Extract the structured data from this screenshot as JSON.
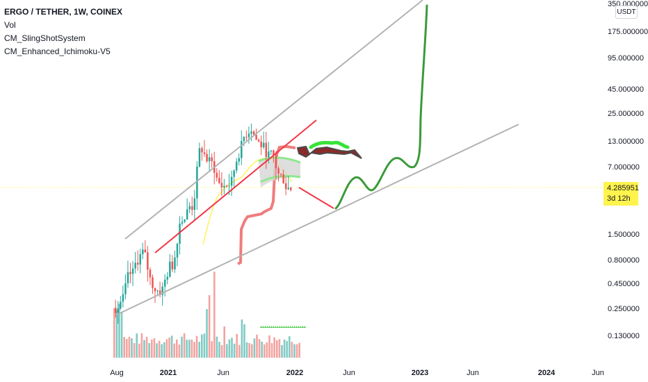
{
  "header": {
    "symbol_line": "ERGO / TETHER, 1W, COINEX",
    "indicators": [
      "Vol",
      "CM_SlingShotSystem",
      "CM_Enhanced_Ichimoku-V5"
    ]
  },
  "price_scale": {
    "currency_badge": "USDT",
    "ticks": [
      "350.000000",
      "175.000000",
      "95.000000",
      "45.000000",
      "25.000000",
      "13.000000",
      "7.000000",
      "1.500000",
      "0.800000",
      "0.450000",
      "0.250000",
      "0.130000"
    ],
    "last_price": "4.285951",
    "countdown": "3d 12h"
  },
  "time_axis": {
    "labels": [
      "Aug",
      "2021",
      "Jun",
      "2022",
      "Jun",
      "2023",
      "Jun",
      "2024",
      "Jun"
    ]
  },
  "colors": {
    "up": "#26a69a",
    "down": "#ef5350",
    "volume_up": "#80cbc4",
    "volume_down": "#f4a3a0",
    "last_price": "#fff34d",
    "trend_channel": "#b2b2b2",
    "red_trendline": "#f23645",
    "projection": "#3a9a3a",
    "ma_yellow": "#fff35a",
    "ema_red": "#f07c7c"
  },
  "chart_data": {
    "type": "candlestick",
    "scale": "log",
    "timeframe": "1W",
    "ylim": [
      0.1,
      350
    ],
    "x_range": [
      "2020-08",
      "2024-06"
    ],
    "last_price": 4.285951,
    "weekly_close_path": [
      {
        "date": "2020-08",
        "close": 0.3
      },
      {
        "date": "2020-09",
        "close": 0.55
      },
      {
        "date": "2020-10",
        "close": 0.9
      },
      {
        "date": "2020-11",
        "close": 0.45
      },
      {
        "date": "2020-12",
        "close": 0.38
      },
      {
        "date": "2021-01",
        "close": 0.7
      },
      {
        "date": "2021-02",
        "close": 2.2
      },
      {
        "date": "2021-03",
        "close": 2.8
      },
      {
        "date": "2021-04",
        "close": 11
      },
      {
        "date": "2021-05",
        "close": 7.5
      },
      {
        "date": "2021-06",
        "close": 4.5
      },
      {
        "date": "2021-07",
        "close": 4.8
      },
      {
        "date": "2021-08",
        "close": 11
      },
      {
        "date": "2021-09",
        "close": 18
      },
      {
        "date": "2021-10",
        "close": 12
      },
      {
        "date": "2021-11",
        "close": 9
      },
      {
        "date": "2021-12",
        "close": 5.5
      },
      {
        "date": "2022-01",
        "close": 4.29
      }
    ],
    "annotations": [
      "rising grey channel lines",
      "red trendline",
      "green hand-drawn projection toward 350"
    ]
  }
}
